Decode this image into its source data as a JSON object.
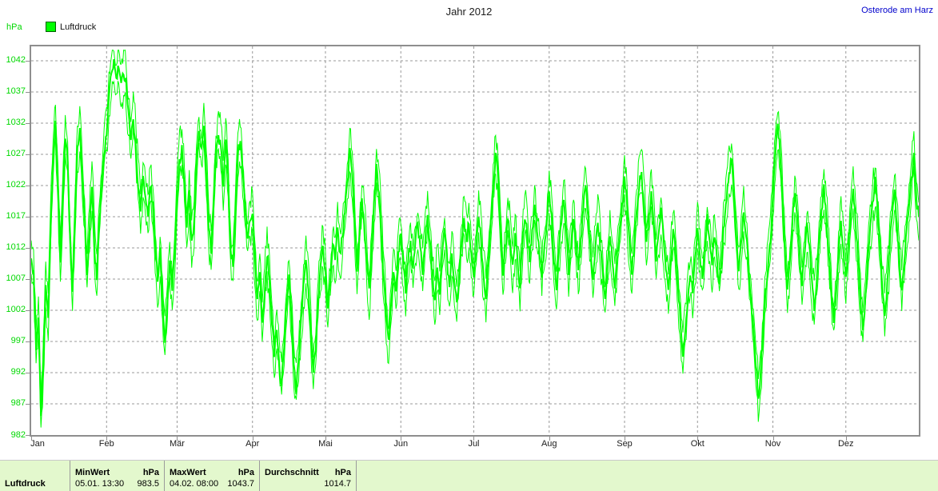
{
  "header": {
    "title": "Jahr 2012",
    "station": "Osterode am Harz"
  },
  "legend": {
    "label": "Luftdruck",
    "swatch_color": "#00ff00"
  },
  "axes": {
    "y_unit": "hPa",
    "y_tick_values": [
      1042,
      1037,
      1032,
      1027,
      1022,
      1017,
      1012,
      1007,
      1002,
      997,
      992,
      987,
      982
    ],
    "y_min": 982,
    "y_max": 1044.3,
    "x_tick_labels": [
      "Jan",
      "Feb",
      "Mär",
      "Apr",
      "Mai",
      "Jun",
      "Jul",
      "Aug",
      "Sep",
      "Okt",
      "Nov",
      "Dez"
    ]
  },
  "colors": {
    "line_green": "#00ff00",
    "axis_text_green": "#00d800",
    "grid_gray": "#999999",
    "frame_gray": "#8e8e8e",
    "station_blue": "#0000cc",
    "table_bg": "#e3f8cd"
  },
  "chart_data": {
    "type": "line",
    "title": "Jahr 2012",
    "station": "Osterode am Harz",
    "ylabel": "hPa",
    "ylim": [
      982,
      1044.3
    ],
    "grid": "dashed",
    "legend_position": "top-left",
    "x_months": [
      "Jan",
      "Feb",
      "Mär",
      "Apr",
      "Mai",
      "Jun",
      "Jul",
      "Aug",
      "Sep",
      "Okt",
      "Nov",
      "Dez"
    ],
    "series": [
      {
        "name": "Luftdruck",
        "unit": "hPa",
        "style": "daily mean line plus daily min/max envelope lines",
        "daily_mean_by_month": {
          "Jan": [
            1010,
            1008,
            996,
            1001,
            985,
            995,
            1006,
            1001,
            1015,
            1026,
            1032,
            1022,
            1010,
            1020,
            1030,
            1026,
            1013,
            1005,
            1018,
            1028,
            1031,
            1024,
            1017,
            1008,
            1015,
            1022,
            1012,
            1007,
            1017,
            1022,
            1027
          ],
          "Feb": [
            1030,
            1036,
            1040,
            1042,
            1039,
            1041,
            1038,
            1040,
            1039,
            1034,
            1029,
            1033,
            1028,
            1022,
            1018,
            1024,
            1020,
            1017,
            1022,
            1019,
            1012,
            1007,
            1012,
            1004,
            997,
            1003,
            1010,
            1005,
            1011
          ],
          "Mär": [
            1020,
            1026,
            1028,
            1022,
            1015,
            1021,
            1013,
            1016,
            1026,
            1031,
            1028,
            1032,
            1024,
            1015,
            1011,
            1019,
            1027,
            1030,
            1028,
            1022,
            1029,
            1024,
            1012,
            1009,
            1018,
            1027,
            1029,
            1024,
            1018,
            1013,
            1016
          ],
          "Apr": [
            1017,
            1010,
            1004,
            1008,
            1000,
            1005,
            1011,
            1007,
            1000,
            995,
            999,
            993,
            990,
            996,
            1003,
            1008,
            1001,
            993,
            989,
            994,
            1001,
            1006,
            1010,
            1005,
            998,
            992,
            996,
            1004,
            1009,
            1012
          ],
          "Mai": [
            1008,
            1002,
            1007,
            1013,
            1010,
            1015,
            1011,
            1014,
            1018,
            1022,
            1028,
            1024,
            1016,
            1008,
            1014,
            1020,
            1016,
            1010,
            1005,
            1012,
            1019,
            1025,
            1021,
            1014,
            1007,
            1001,
            997,
            1003,
            1008,
            1005,
            1011
          ],
          "Jun": [
            1014,
            1009,
            1005,
            1010,
            1013,
            1009,
            1013,
            1016,
            1012,
            1008,
            1013,
            1017,
            1013,
            1008,
            1004,
            1009,
            1005,
            1011,
            1015,
            1010,
            1006,
            1011,
            1007,
            1003,
            1008,
            1013,
            1017,
            1013,
            1016,
            1011
          ],
          "Jul": [
            1007,
            1012,
            1017,
            1013,
            1008,
            1004,
            1010,
            1016,
            1022,
            1027,
            1023,
            1015,
            1008,
            1012,
            1017,
            1013,
            1009,
            1014,
            1010,
            1006,
            1012,
            1017,
            1014,
            1010,
            1015,
            1019,
            1015,
            1011,
            1007,
            1012,
            1016
          ],
          "Aug": [
            1021,
            1017,
            1010,
            1005,
            1011,
            1016,
            1020,
            1015,
            1008,
            1012,
            1017,
            1013,
            1008,
            1013,
            1018,
            1022,
            1017,
            1012,
            1007,
            1012,
            1016,
            1012,
            1008,
            1004,
            1009,
            1014,
            1010,
            1006,
            1011,
            1015,
            1019
          ],
          "Sep": [
            1023,
            1019,
            1013,
            1008,
            1013,
            1018,
            1022,
            1024,
            1019,
            1013,
            1017,
            1021,
            1016,
            1010,
            1014,
            1018,
            1014,
            1009,
            1005,
            1010,
            1015,
            1011,
            1006,
            1000,
            995,
            999,
            1004,
            1008,
            1005,
            1010
          ],
          "Okt": [
            1015,
            1011,
            1007,
            1012,
            1017,
            1013,
            1009,
            1014,
            1010,
            1006,
            1011,
            1016,
            1020,
            1024,
            1026,
            1021,
            1014,
            1008,
            1013,
            1018,
            1014,
            1009,
            1004,
            999,
            993,
            988,
            992,
            999,
            1005,
            1009,
            1013
          ],
          "Nov": [
            1020,
            1027,
            1032,
            1027,
            1019,
            1011,
            1005,
            1010,
            1016,
            1021,
            1017,
            1011,
            1006,
            1011,
            1016,
            1012,
            1007,
            1002,
            1007,
            1013,
            1018,
            1022,
            1017,
            1011,
            1005,
            1000,
            1005,
            1011,
            1016,
            1012
          ],
          "Dez": [
            1007,
            1012,
            1017,
            1021,
            1016,
            1010,
            1004,
            999,
            1004,
            1010,
            1015,
            1019,
            1023,
            1018,
            1012,
            1006,
            1001,
            1006,
            1012,
            1017,
            1021,
            1016,
            1010,
            1005,
            1010,
            1015,
            1019,
            1023,
            1027,
            1020,
            1017
          ]
        }
      }
    ],
    "annotations": {
      "min_record": {
        "date": "05.01.",
        "time": "13:30",
        "value": 983.5
      },
      "max_record": {
        "date": "04.02.",
        "time": "08:00",
        "value": 1043.7
      },
      "mean": 1014.7
    }
  },
  "stats_table": {
    "row_label": "Luftdruck",
    "min": {
      "header": "MinWert",
      "unit": "hPa",
      "datetime": "05.01.  13:30",
      "value": "983.5"
    },
    "max": {
      "header": "MaxWert",
      "unit": "hPa",
      "datetime": "04.02.  08:00",
      "value": "1043.7"
    },
    "avg": {
      "header": "Durchschnitt",
      "unit": "hPa",
      "datetime": "",
      "value": "1014.7"
    }
  }
}
